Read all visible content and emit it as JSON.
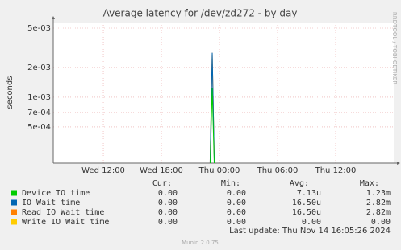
{
  "chart_data": {
    "type": "line",
    "title": "Average latency for /dev/zd272 - by day",
    "y_label": "seconds",
    "side_text": "RRDTOOL / TOBI OETIKER",
    "log_y": true,
    "grid": true,
    "ylim": [
      0.000215,
      0.0057
    ],
    "yticks": [
      {
        "value": 0.005,
        "label": "5e-03"
      },
      {
        "value": 0.002,
        "label": "2e-03"
      },
      {
        "value": 0.001,
        "label": "1e-03"
      },
      {
        "value": 0.0007,
        "label": "7e-04"
      },
      {
        "value": 0.0005,
        "label": "5e-04"
      }
    ],
    "xlim": [
      6.83,
      42
    ],
    "xticks": [
      {
        "value": 12,
        "label": "Wed 12:00"
      },
      {
        "value": 18,
        "label": "Wed 18:00"
      },
      {
        "value": 24,
        "label": "Thu 00:00"
      },
      {
        "value": 30,
        "label": "Thu 06:00"
      },
      {
        "value": 36,
        "label": "Thu 12:00"
      }
    ],
    "stat_headers": [
      "Cur:",
      "Min:",
      "Avg:",
      "Max:"
    ],
    "series": [
      {
        "name": "Device IO time",
        "color": "#00cc00",
        "x": [
          23.0,
          23.25,
          23.5
        ],
        "values": [
          0,
          0.00123,
          0
        ],
        "stats": [
          "0.00",
          "0.00",
          "7.13u",
          "1.23m"
        ]
      },
      {
        "name": "IO Wait time",
        "color": "#0066b3",
        "x": [
          23.0,
          23.25,
          23.5
        ],
        "values": [
          0,
          0.00282,
          0
        ],
        "stats": [
          "0.00",
          "0.00",
          "16.50u",
          "2.82m"
        ]
      },
      {
        "name": "Read IO Wait time",
        "color": "#ff8000",
        "x": [
          23.0,
          23.25,
          23.5
        ],
        "values": [
          0,
          0.00282,
          0
        ],
        "stats": [
          "0.00",
          "0.00",
          "16.50u",
          "2.82m"
        ]
      },
      {
        "name": "Write IO Wait time",
        "color": "#ffcc00",
        "x": [
          23.0,
          23.25,
          23.5
        ],
        "values": [
          0,
          0,
          0
        ],
        "stats": [
          "0.00",
          "0.00",
          "0.00",
          "0.00"
        ]
      }
    ],
    "last_update": "Last update:  Thu Nov 14 16:05:26 2024",
    "footer": "Munin 2.0.75"
  }
}
